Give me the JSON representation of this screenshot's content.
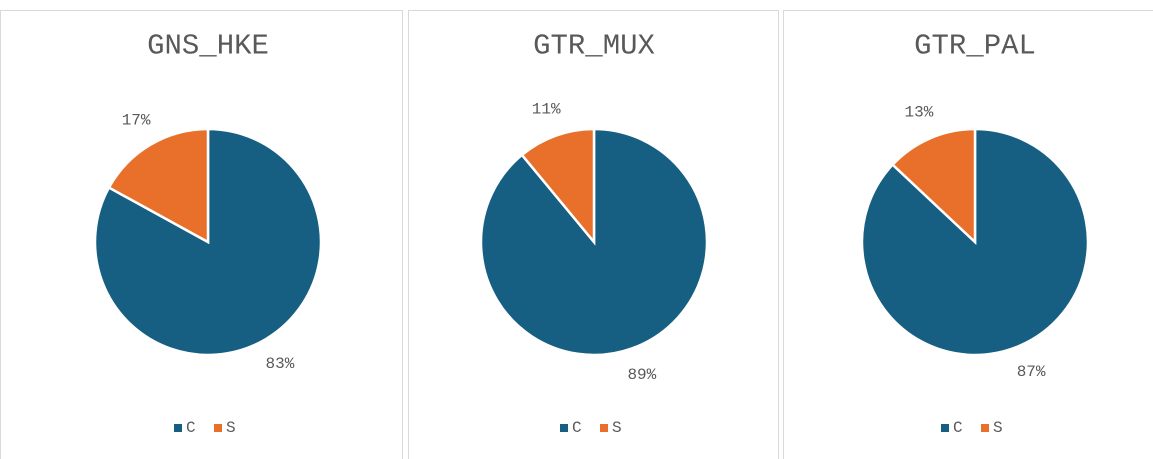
{
  "chart_data": [
    {
      "type": "pie",
      "title": "GNS_HKE",
      "categories": [
        "C",
        "S"
      ],
      "values": [
        83,
        17
      ],
      "value_labels": [
        "83%",
        "17%"
      ],
      "colors": [
        "#175f82",
        "#e8702a"
      ],
      "legend": "bottom"
    },
    {
      "type": "pie",
      "title": "GTR_MUX",
      "categories": [
        "C",
        "S"
      ],
      "values": [
        89,
        11
      ],
      "value_labels": [
        "89%",
        "11%"
      ],
      "colors": [
        "#175f82",
        "#e8702a"
      ],
      "legend": "bottom"
    },
    {
      "type": "pie",
      "title": "GTR_PAL",
      "categories": [
        "C",
        "S"
      ],
      "values": [
        87,
        13
      ],
      "value_labels": [
        "87%",
        "13%"
      ],
      "colors": [
        "#175f82",
        "#e8702a"
      ],
      "legend": "bottom"
    }
  ]
}
